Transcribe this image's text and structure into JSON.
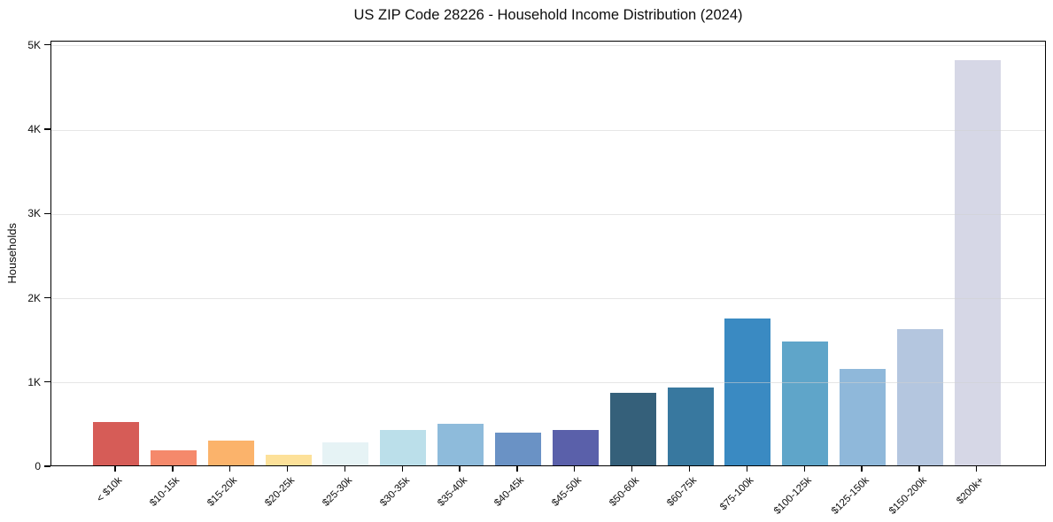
{
  "page": {
    "title": "US ZIP Code 28226 - Household Income Distribution (2024)"
  },
  "chart_data": {
    "type": "bar",
    "title": "US ZIP Code 28226 - Household Income Distribution (2024)",
    "xlabel": "",
    "ylabel": "Households",
    "ylim": [
      0,
      5050
    ],
    "ytick_values": [
      0,
      1000,
      2000,
      3000,
      4000,
      5000
    ],
    "ytick_labels": [
      "0",
      "1K",
      "2K",
      "3K",
      "4K",
      "5K"
    ],
    "grid": "horizontal",
    "legend": "none",
    "categories": [
      "< $10k",
      "$10-15k",
      "$15-20k",
      "$20-25k",
      "$25-30k",
      "$30-35k",
      "$35-40k",
      "$40-45k",
      "$45-50k",
      "$50-60k",
      "$60-75k",
      "$75-100k",
      "$100-125k",
      "$125-150k",
      "$150-200k",
      "$200k+"
    ],
    "values": [
      510,
      175,
      295,
      125,
      270,
      420,
      490,
      390,
      415,
      860,
      920,
      1740,
      1470,
      1140,
      1620,
      4810
    ],
    "bar_colors": [
      "#d65c57",
      "#f5896b",
      "#fbb36b",
      "#fde199",
      "#e6f3f5",
      "#bbdfea",
      "#8ebbdb",
      "#6a92c5",
      "#5a60aa",
      "#35607a",
      "#38789f",
      "#3a8ac2",
      "#5fa5c9",
      "#8fb8da",
      "#b4c6df",
      "#d6d7e6"
    ]
  }
}
